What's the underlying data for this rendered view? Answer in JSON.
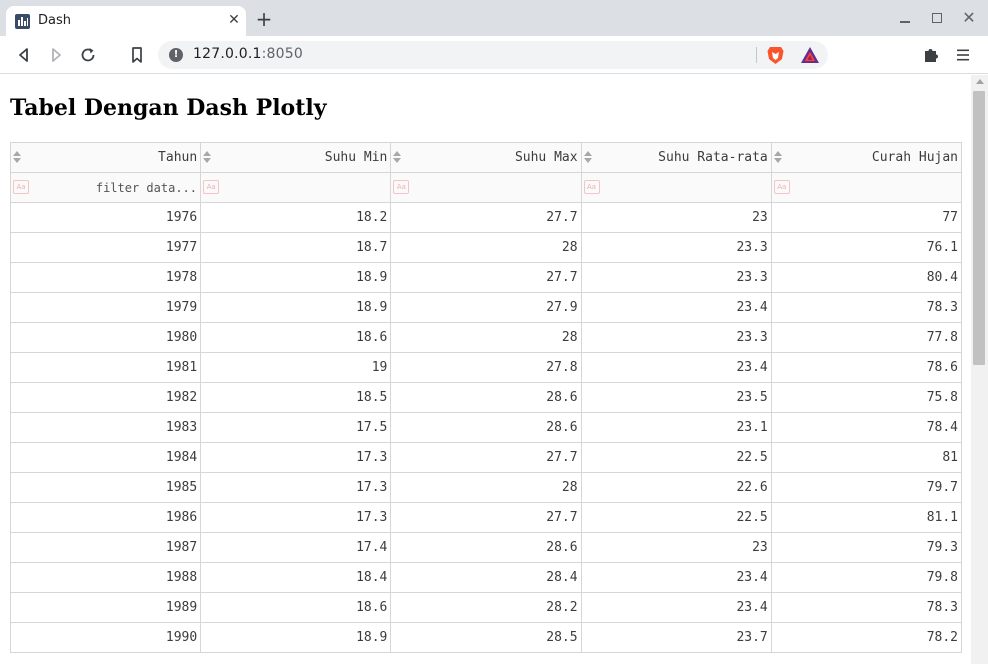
{
  "browser": {
    "tab_title": "Dash",
    "url_host": "127.0.0.1",
    "url_port": ":8050",
    "tab_close_glyph": "✕",
    "new_tab_glyph": "+",
    "window_close_glyph": "✕"
  },
  "page": {
    "title": "Tabel Dengan Dash Plotly"
  },
  "table": {
    "columns": [
      "Tahun",
      "Suhu Min",
      "Suhu Max",
      "Suhu Rata-rata",
      "Curah Hujan"
    ],
    "filter_placeholder": "filter data...",
    "case_toggle_label": "Aa",
    "rows": [
      [
        "1976",
        "18.2",
        "27.7",
        "23",
        "77"
      ],
      [
        "1977",
        "18.7",
        "28",
        "23.3",
        "76.1"
      ],
      [
        "1978",
        "18.9",
        "27.7",
        "23.3",
        "80.4"
      ],
      [
        "1979",
        "18.9",
        "27.9",
        "23.4",
        "78.3"
      ],
      [
        "1980",
        "18.6",
        "28",
        "23.3",
        "77.8"
      ],
      [
        "1981",
        "19",
        "27.8",
        "23.4",
        "78.6"
      ],
      [
        "1982",
        "18.5",
        "28.6",
        "23.5",
        "75.8"
      ],
      [
        "1983",
        "17.5",
        "28.6",
        "23.1",
        "78.4"
      ],
      [
        "1984",
        "17.3",
        "27.7",
        "22.5",
        "81"
      ],
      [
        "1985",
        "17.3",
        "28",
        "22.6",
        "79.7"
      ],
      [
        "1986",
        "17.3",
        "27.7",
        "22.5",
        "81.1"
      ],
      [
        "1987",
        "17.4",
        "28.6",
        "23",
        "79.3"
      ],
      [
        "1988",
        "18.4",
        "28.4",
        "23.4",
        "79.8"
      ],
      [
        "1989",
        "18.6",
        "28.2",
        "23.4",
        "78.3"
      ],
      [
        "1990",
        "18.9",
        "28.5",
        "23.7",
        "78.2"
      ]
    ]
  },
  "icons": {
    "favicon": "bar-chart-icon",
    "back": "back-arrow-icon",
    "forward": "forward-arrow-icon",
    "reload": "reload-icon",
    "bookmark": "bookmark-icon",
    "site_info": "info-icon",
    "brave_shield": "brave-lion-icon",
    "rewards": "bat-triangle-icon",
    "extensions": "puzzle-icon",
    "menu": "hamburger-menu-icon"
  },
  "colors": {
    "tabstrip_bg": "#dcdfe3",
    "brave_orange": "#fb542b",
    "table_border": "#d6d6d6",
    "header_bg": "#fafafa"
  }
}
